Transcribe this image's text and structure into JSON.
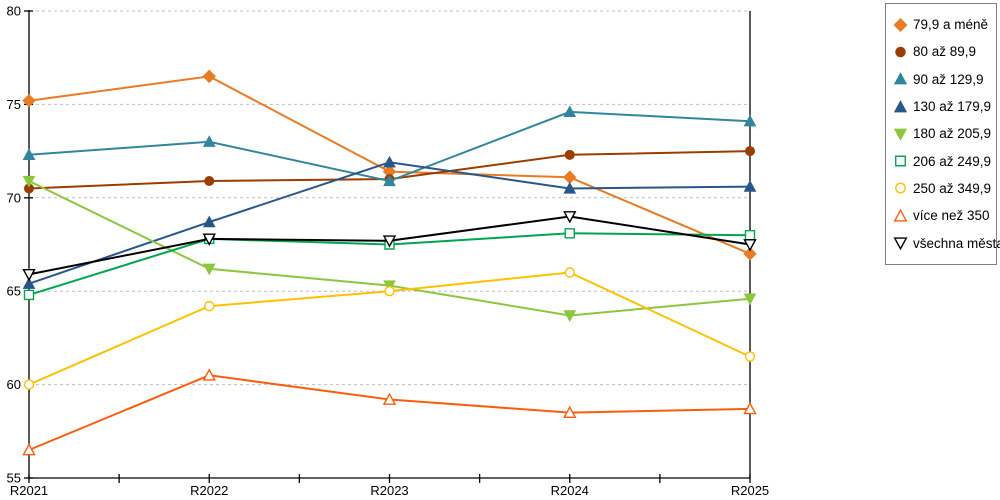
{
  "chart_data": {
    "type": "line",
    "title": "",
    "xlabel": "",
    "ylabel": "",
    "categories": [
      "R2021",
      "R2022",
      "R2023",
      "R2024",
      "R2025"
    ],
    "series": [
      {
        "name": "79,9 a méně",
        "marker": "diamond",
        "fill": "filled",
        "color": "#E87B24",
        "values": [
          75.2,
          76.5,
          71.4,
          71.1,
          67.0
        ]
      },
      {
        "name": "80 až 89,9",
        "marker": "circle",
        "fill": "filled",
        "color": "#9C3D00",
        "values": [
          70.5,
          70.9,
          71.0,
          72.3,
          72.5
        ]
      },
      {
        "name": "90 až 129,9",
        "marker": "triangle-up",
        "fill": "filled",
        "color": "#31859C",
        "values": [
          72.3,
          73.0,
          70.9,
          74.6,
          74.1
        ]
      },
      {
        "name": "130 až 179,9",
        "marker": "triangle-up",
        "fill": "filled",
        "color": "#27568A",
        "values": [
          65.4,
          68.7,
          71.9,
          70.5,
          70.6
        ]
      },
      {
        "name": "180 až 205,9",
        "marker": "triangle-down",
        "fill": "filled",
        "color": "#8CC63F",
        "values": [
          70.9,
          66.2,
          65.3,
          63.7,
          64.6
        ]
      },
      {
        "name": "206 až 249,9",
        "marker": "square",
        "fill": "hollow",
        "color": "#00A550",
        "values": [
          64.8,
          67.8,
          67.5,
          68.1,
          68.0
        ]
      },
      {
        "name": "250 až 349,9",
        "marker": "circle",
        "fill": "hollow",
        "color": "#FFC000",
        "values": [
          60.0,
          64.2,
          65.0,
          66.0,
          61.5
        ]
      },
      {
        "name": "více než 350",
        "marker": "triangle-up",
        "fill": "hollow",
        "color": "#FA5D0F",
        "values": [
          56.5,
          60.5,
          59.2,
          58.5,
          58.7
        ]
      },
      {
        "name": "všechna města",
        "marker": "triangle-down",
        "fill": "hollow",
        "color": "#000000",
        "values": [
          65.9,
          67.8,
          67.7,
          69.0,
          67.5
        ]
      }
    ],
    "ylim": [
      55,
      80
    ],
    "ytick_step": 5,
    "y_tick_labels": [
      "55",
      "60",
      "65",
      "70",
      "75",
      "80"
    ],
    "grid": "horizontal-dashed",
    "legend_position": "right"
  },
  "colors": {
    "grid": "#BFBFBF",
    "axis": "#000000",
    "legend_border": "#7F7F7F",
    "background": "#FFFFFF"
  }
}
